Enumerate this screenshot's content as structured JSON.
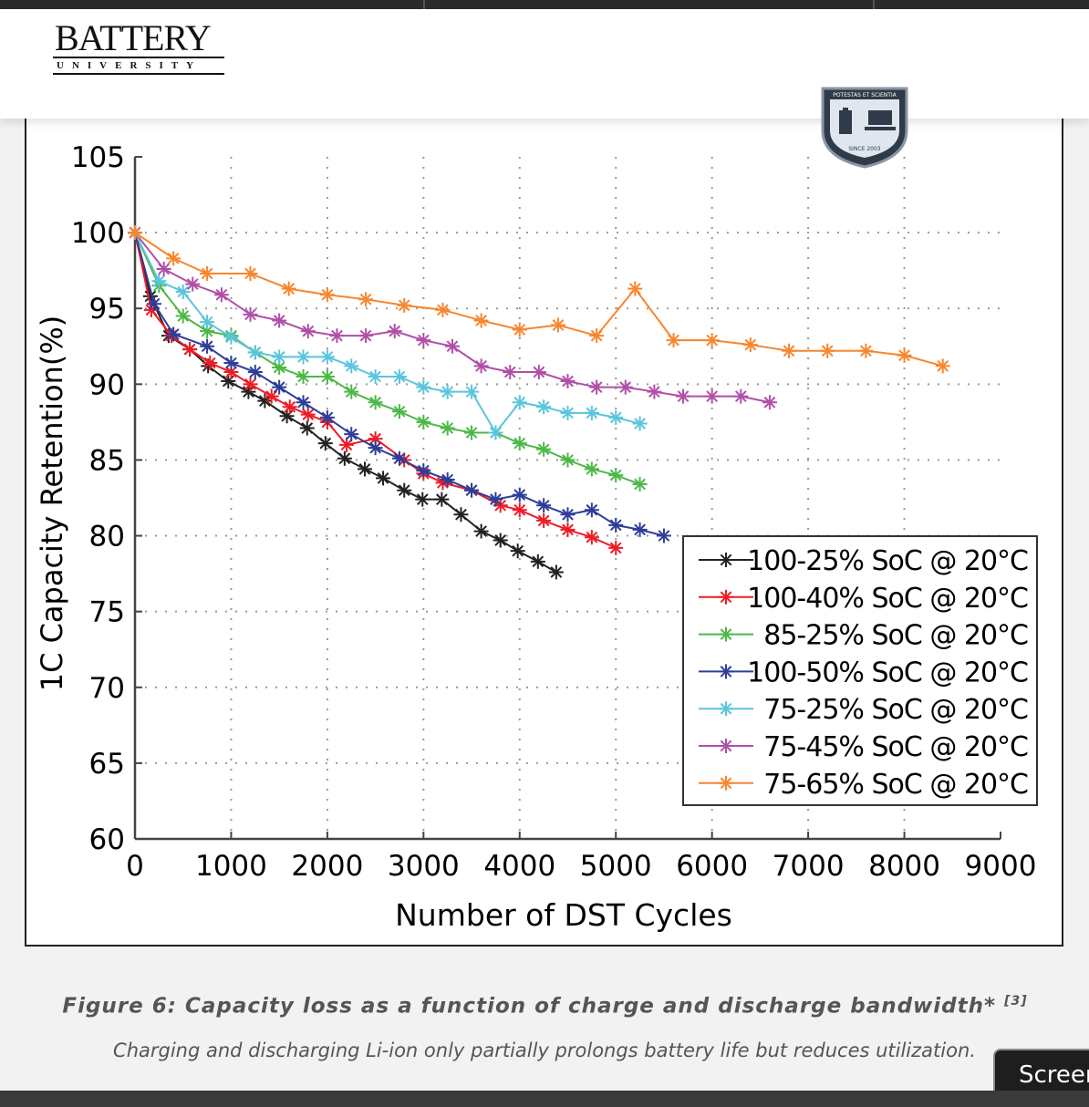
{
  "header": {
    "logo_main": "BATTERY",
    "logo_sub": "UNIVERSITY",
    "badge_top": "POTESTAS ET SCIENTIA",
    "badge_bottom": "SINCE 2003"
  },
  "caption": {
    "title": "Figure 6: Capacity loss as a function of charge and discharge bandwidth*",
    "ref": "[3]",
    "text": "Charging and discharging Li-ion only partially prolongs battery life but reduces utilization."
  },
  "screen_button": "Screen",
  "chart_data": {
    "type": "line",
    "title": "",
    "xlabel": "Number of DST Cycles",
    "ylabel": "1C Capacity Retention(%)",
    "xlim": [
      0,
      9000
    ],
    "ylim": [
      60,
      105
    ],
    "xticks": [
      0,
      1000,
      2000,
      3000,
      4000,
      5000,
      6000,
      7000,
      8000,
      9000
    ],
    "yticks": [
      60,
      65,
      70,
      75,
      80,
      85,
      90,
      95,
      100,
      105
    ],
    "grid": true,
    "legend_position": "bottom-right",
    "marker": "asterisk",
    "series": [
      {
        "name": "100-25% SoC @ 20°C",
        "color": "#222222",
        "points": [
          [
            0,
            100
          ],
          [
            160,
            95.8
          ],
          [
            350,
            93.2
          ],
          [
            570,
            92.3
          ],
          [
            760,
            91.2
          ],
          [
            970,
            90.2
          ],
          [
            1180,
            89.5
          ],
          [
            1350,
            88.9
          ],
          [
            1580,
            87.9
          ],
          [
            1790,
            87.1
          ],
          [
            1980,
            86.1
          ],
          [
            2180,
            85.1
          ],
          [
            2390,
            84.4
          ],
          [
            2580,
            83.8
          ],
          [
            2800,
            83.0
          ],
          [
            2990,
            82.4
          ],
          [
            3190,
            82.4
          ],
          [
            3390,
            81.4
          ],
          [
            3600,
            80.3
          ],
          [
            3800,
            79.7
          ],
          [
            3980,
            79.0
          ],
          [
            4190,
            78.3
          ],
          [
            4380,
            77.6
          ]
        ]
      },
      {
        "name": "100-40% SoC @ 20°C",
        "color": "#ee1c25",
        "points": [
          [
            0,
            100
          ],
          [
            170,
            94.9
          ],
          [
            380,
            93.2
          ],
          [
            570,
            92.3
          ],
          [
            780,
            91.4
          ],
          [
            1000,
            90.8
          ],
          [
            1200,
            90.0
          ],
          [
            1420,
            89.2
          ],
          [
            1610,
            88.5
          ],
          [
            1800,
            88.0
          ],
          [
            2000,
            87.5
          ],
          [
            2200,
            86.0
          ],
          [
            2500,
            86.4
          ],
          [
            2800,
            85.0
          ],
          [
            3000,
            84.1
          ],
          [
            3200,
            83.5
          ],
          [
            3500,
            83.0
          ],
          [
            3800,
            82.0
          ],
          [
            4000,
            81.7
          ],
          [
            4250,
            81.0
          ],
          [
            4500,
            80.4
          ],
          [
            4750,
            79.9
          ],
          [
            5000,
            79.2
          ]
        ]
      },
      {
        "name": "85-25% SoC @ 20°C",
        "color": "#4db848",
        "points": [
          [
            0,
            100
          ],
          [
            250,
            96.5
          ],
          [
            500,
            94.5
          ],
          [
            750,
            93.5
          ],
          [
            1000,
            93.2
          ],
          [
            1250,
            92.1
          ],
          [
            1500,
            91.1
          ],
          [
            1750,
            90.5
          ],
          [
            2000,
            90.5
          ],
          [
            2250,
            89.5
          ],
          [
            2500,
            88.8
          ],
          [
            2750,
            88.2
          ],
          [
            3000,
            87.5
          ],
          [
            3250,
            87.1
          ],
          [
            3500,
            86.8
          ],
          [
            3750,
            86.8
          ],
          [
            4000,
            86.1
          ],
          [
            4250,
            85.7
          ],
          [
            4500,
            85.0
          ],
          [
            4750,
            84.4
          ],
          [
            5000,
            84.0
          ],
          [
            5250,
            83.4
          ]
        ]
      },
      {
        "name": "100-50% SoC @ 20°C",
        "color": "#2e3d98",
        "points": [
          [
            0,
            100
          ],
          [
            200,
            95.3
          ],
          [
            400,
            93.3
          ],
          [
            750,
            92.5
          ],
          [
            1000,
            91.4
          ],
          [
            1250,
            90.8
          ],
          [
            1500,
            89.8
          ],
          [
            1750,
            88.8
          ],
          [
            2000,
            87.8
          ],
          [
            2250,
            86.7
          ],
          [
            2500,
            85.8
          ],
          [
            2750,
            85.1
          ],
          [
            3000,
            84.3
          ],
          [
            3250,
            83.7
          ],
          [
            3500,
            83.0
          ],
          [
            3750,
            82.4
          ],
          [
            4000,
            82.7
          ],
          [
            4250,
            82.0
          ],
          [
            4500,
            81.4
          ],
          [
            4750,
            81.7
          ],
          [
            5000,
            80.7
          ],
          [
            5250,
            80.4
          ],
          [
            5500,
            80.0
          ]
        ]
      },
      {
        "name": "75-25% SoC @ 20°C",
        "color": "#5bc5dc",
        "points": [
          [
            0,
            100
          ],
          [
            250,
            96.8
          ],
          [
            500,
            96.1
          ],
          [
            750,
            94.1
          ],
          [
            1000,
            93.1
          ],
          [
            1250,
            92.1
          ],
          [
            1500,
            91.8
          ],
          [
            1750,
            91.8
          ],
          [
            2000,
            91.8
          ],
          [
            2250,
            91.2
          ],
          [
            2500,
            90.5
          ],
          [
            2750,
            90.5
          ],
          [
            3000,
            89.8
          ],
          [
            3250,
            89.5
          ],
          [
            3500,
            89.5
          ],
          [
            3750,
            86.8
          ],
          [
            4000,
            88.8
          ],
          [
            4250,
            88.5
          ],
          [
            4500,
            88.1
          ],
          [
            4750,
            88.1
          ],
          [
            5000,
            87.8
          ],
          [
            5250,
            87.4
          ]
        ]
      },
      {
        "name": "75-45% SoC @ 20°C",
        "color": "#b04fa8",
        "points": [
          [
            0,
            100
          ],
          [
            300,
            97.6
          ],
          [
            600,
            96.6
          ],
          [
            900,
            95.9
          ],
          [
            1200,
            94.6
          ],
          [
            1500,
            94.2
          ],
          [
            1800,
            93.5
          ],
          [
            2100,
            93.2
          ],
          [
            2400,
            93.2
          ],
          [
            2700,
            93.5
          ],
          [
            3000,
            92.9
          ],
          [
            3300,
            92.5
          ],
          [
            3600,
            91.2
          ],
          [
            3900,
            90.8
          ],
          [
            4200,
            90.8
          ],
          [
            4500,
            90.2
          ],
          [
            4800,
            89.8
          ],
          [
            5100,
            89.8
          ],
          [
            5400,
            89.5
          ],
          [
            5700,
            89.2
          ],
          [
            6000,
            89.2
          ],
          [
            6300,
            89.2
          ],
          [
            6600,
            88.8
          ]
        ]
      },
      {
        "name": "75-65% SoC @ 20°C",
        "color": "#f7862f",
        "points": [
          [
            0,
            100
          ],
          [
            400,
            98.3
          ],
          [
            750,
            97.3
          ],
          [
            1200,
            97.3
          ],
          [
            1600,
            96.3
          ],
          [
            2000,
            95.9
          ],
          [
            2400,
            95.6
          ],
          [
            2800,
            95.2
          ],
          [
            3200,
            94.9
          ],
          [
            3600,
            94.2
          ],
          [
            4000,
            93.6
          ],
          [
            4400,
            93.9
          ],
          [
            4800,
            93.2
          ],
          [
            5200,
            96.3
          ],
          [
            5600,
            92.9
          ],
          [
            6000,
            92.9
          ],
          [
            6400,
            92.6
          ],
          [
            6800,
            92.2
          ],
          [
            7200,
            92.2
          ],
          [
            7600,
            92.2
          ],
          [
            8000,
            91.9
          ],
          [
            8400,
            91.2
          ]
        ]
      }
    ]
  }
}
